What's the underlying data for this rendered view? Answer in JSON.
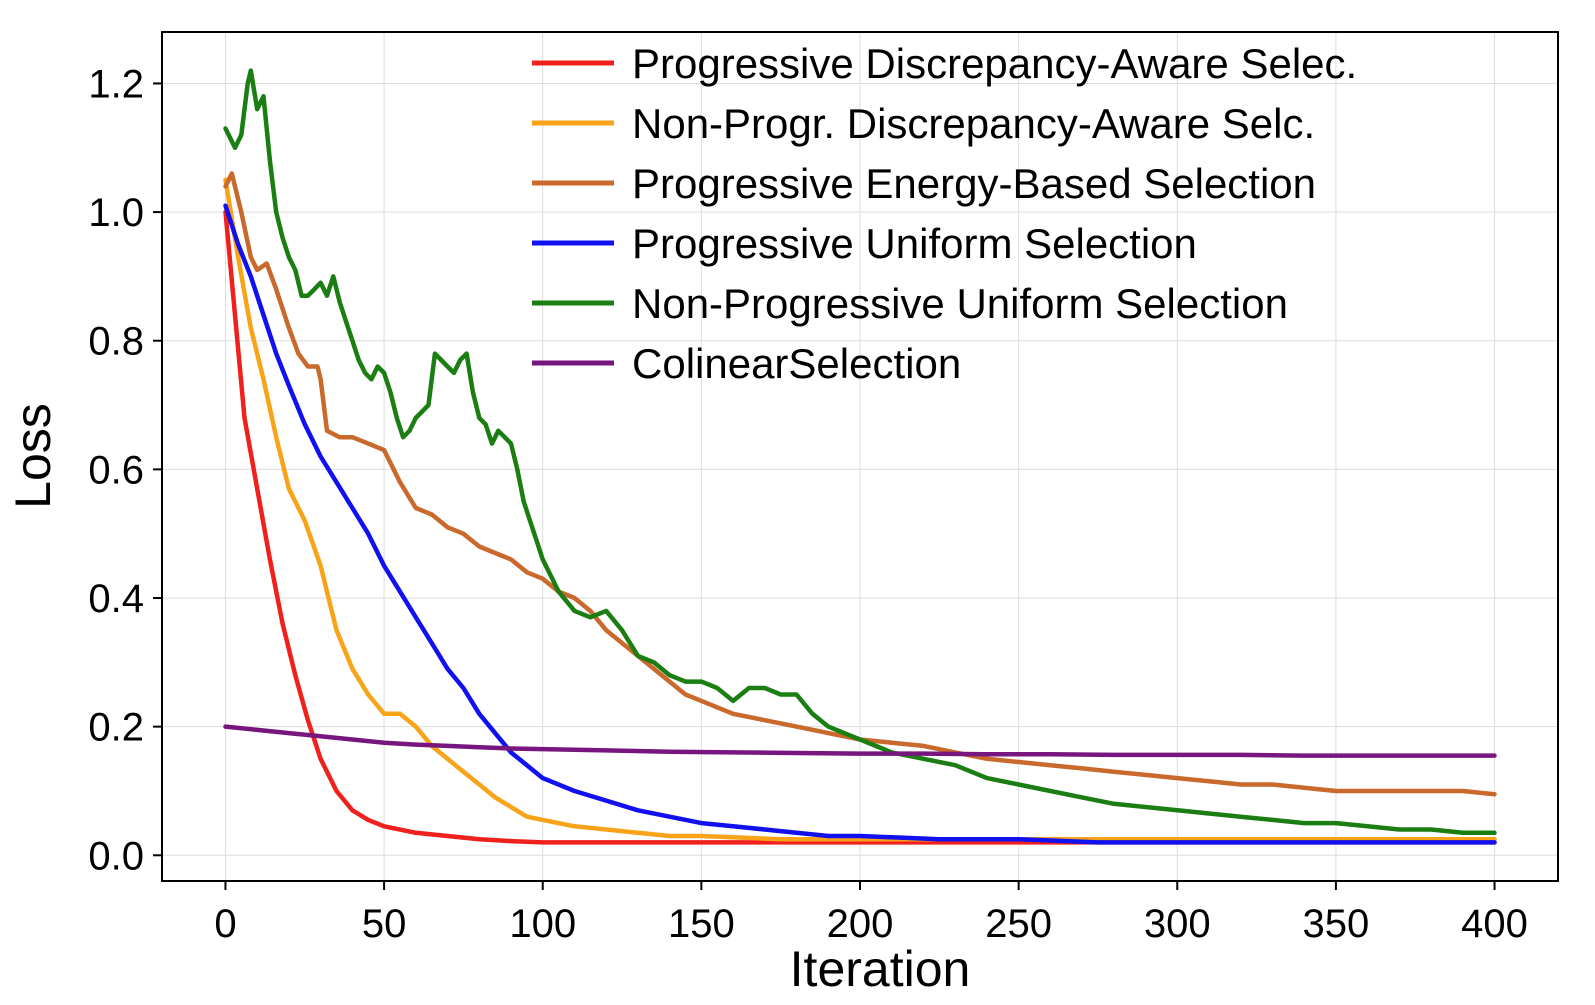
{
  "chart_data": {
    "type": "line",
    "title": "",
    "xlabel": "Iteration",
    "ylabel": "Loss",
    "xlim": [
      -20,
      420
    ],
    "ylim": [
      -0.04,
      1.28
    ],
    "xticks": [
      0,
      50,
      100,
      150,
      200,
      250,
      300,
      350,
      400
    ],
    "yticks": [
      0.0,
      0.2,
      0.4,
      0.6,
      0.8,
      1.0,
      1.2
    ],
    "xtick_labels": [
      "0",
      "50",
      "100",
      "150",
      "200",
      "250",
      "300",
      "350",
      "400"
    ],
    "ytick_labels": [
      "0.0",
      "0.2",
      "0.4",
      "0.6",
      "0.8",
      "1.0",
      "1.2"
    ],
    "grid": true,
    "legend_position": "top-right",
    "series": [
      {
        "name": "Progressive Discrepancy-Aware Selec.",
        "color": "#f0201c",
        "points": [
          [
            0,
            1.0
          ],
          [
            3,
            0.84
          ],
          [
            6,
            0.68
          ],
          [
            10,
            0.57
          ],
          [
            14,
            0.46
          ],
          [
            18,
            0.36
          ],
          [
            22,
            0.28
          ],
          [
            26,
            0.21
          ],
          [
            30,
            0.15
          ],
          [
            35,
            0.1
          ],
          [
            40,
            0.07
          ],
          [
            45,
            0.055
          ],
          [
            50,
            0.045
          ],
          [
            60,
            0.035
          ],
          [
            70,
            0.03
          ],
          [
            80,
            0.025
          ],
          [
            90,
            0.022
          ],
          [
            100,
            0.02
          ],
          [
            120,
            0.02
          ],
          [
            150,
            0.02
          ],
          [
            200,
            0.02
          ],
          [
            250,
            0.02
          ],
          [
            300,
            0.02
          ],
          [
            350,
            0.02
          ],
          [
            400,
            0.02
          ]
        ]
      },
      {
        "name": "Non-Progr. Discrepancy-Aware Selc.",
        "color": "#f8a318",
        "points": [
          [
            0,
            1.05
          ],
          [
            4,
            0.93
          ],
          [
            8,
            0.82
          ],
          [
            12,
            0.74
          ],
          [
            16,
            0.65
          ],
          [
            20,
            0.57
          ],
          [
            25,
            0.52
          ],
          [
            30,
            0.45
          ],
          [
            35,
            0.35
          ],
          [
            40,
            0.29
          ],
          [
            45,
            0.25
          ],
          [
            50,
            0.22
          ],
          [
            55,
            0.22
          ],
          [
            60,
            0.2
          ],
          [
            65,
            0.17
          ],
          [
            70,
            0.15
          ],
          [
            75,
            0.13
          ],
          [
            80,
            0.11
          ],
          [
            85,
            0.09
          ],
          [
            90,
            0.075
          ],
          [
            95,
            0.06
          ],
          [
            100,
            0.055
          ],
          [
            110,
            0.045
          ],
          [
            120,
            0.04
          ],
          [
            130,
            0.035
          ],
          [
            140,
            0.03
          ],
          [
            150,
            0.03
          ],
          [
            175,
            0.025
          ],
          [
            200,
            0.025
          ],
          [
            250,
            0.025
          ],
          [
            300,
            0.025
          ],
          [
            350,
            0.025
          ],
          [
            400,
            0.025
          ]
        ]
      },
      {
        "name": "Progressive Energy-Based Selection",
        "color": "#c9692b",
        "points": [
          [
            0,
            1.04
          ],
          [
            2,
            1.06
          ],
          [
            5,
            1.0
          ],
          [
            8,
            0.93
          ],
          [
            10,
            0.91
          ],
          [
            13,
            0.92
          ],
          [
            16,
            0.88
          ],
          [
            20,
            0.82
          ],
          [
            23,
            0.78
          ],
          [
            26,
            0.76
          ],
          [
            29,
            0.76
          ],
          [
            30,
            0.74
          ],
          [
            32,
            0.66
          ],
          [
            36,
            0.65
          ],
          [
            40,
            0.65
          ],
          [
            45,
            0.64
          ],
          [
            50,
            0.63
          ],
          [
            55,
            0.58
          ],
          [
            60,
            0.54
          ],
          [
            65,
            0.53
          ],
          [
            70,
            0.51
          ],
          [
            75,
            0.5
          ],
          [
            80,
            0.48
          ],
          [
            85,
            0.47
          ],
          [
            90,
            0.46
          ],
          [
            95,
            0.44
          ],
          [
            100,
            0.43
          ],
          [
            105,
            0.41
          ],
          [
            110,
            0.4
          ],
          [
            115,
            0.38
          ],
          [
            120,
            0.35
          ],
          [
            125,
            0.33
          ],
          [
            130,
            0.31
          ],
          [
            135,
            0.29
          ],
          [
            140,
            0.27
          ],
          [
            145,
            0.25
          ],
          [
            150,
            0.24
          ],
          [
            160,
            0.22
          ],
          [
            170,
            0.21
          ],
          [
            180,
            0.2
          ],
          [
            190,
            0.19
          ],
          [
            200,
            0.18
          ],
          [
            210,
            0.175
          ],
          [
            220,
            0.17
          ],
          [
            230,
            0.16
          ],
          [
            240,
            0.15
          ],
          [
            250,
            0.145
          ],
          [
            260,
            0.14
          ],
          [
            270,
            0.135
          ],
          [
            280,
            0.13
          ],
          [
            290,
            0.125
          ],
          [
            300,
            0.12
          ],
          [
            310,
            0.115
          ],
          [
            320,
            0.11
          ],
          [
            330,
            0.11
          ],
          [
            340,
            0.105
          ],
          [
            350,
            0.1
          ],
          [
            360,
            0.1
          ],
          [
            370,
            0.1
          ],
          [
            380,
            0.1
          ],
          [
            390,
            0.1
          ],
          [
            400,
            0.095
          ]
        ]
      },
      {
        "name": "Progressive Uniform Selection",
        "color": "#1010f0",
        "points": [
          [
            0,
            1.01
          ],
          [
            4,
            0.95
          ],
          [
            8,
            0.9
          ],
          [
            12,
            0.84
          ],
          [
            16,
            0.78
          ],
          [
            20,
            0.73
          ],
          [
            25,
            0.67
          ],
          [
            30,
            0.62
          ],
          [
            35,
            0.58
          ],
          [
            40,
            0.54
          ],
          [
            45,
            0.5
          ],
          [
            50,
            0.45
          ],
          [
            55,
            0.41
          ],
          [
            60,
            0.37
          ],
          [
            65,
            0.33
          ],
          [
            70,
            0.29
          ],
          [
            75,
            0.26
          ],
          [
            80,
            0.22
          ],
          [
            85,
            0.19
          ],
          [
            90,
            0.16
          ],
          [
            95,
            0.14
          ],
          [
            100,
            0.12
          ],
          [
            110,
            0.1
          ],
          [
            120,
            0.085
          ],
          [
            130,
            0.07
          ],
          [
            140,
            0.06
          ],
          [
            150,
            0.05
          ],
          [
            160,
            0.045
          ],
          [
            170,
            0.04
          ],
          [
            180,
            0.035
          ],
          [
            190,
            0.03
          ],
          [
            200,
            0.03
          ],
          [
            225,
            0.025
          ],
          [
            250,
            0.025
          ],
          [
            275,
            0.02
          ],
          [
            300,
            0.02
          ],
          [
            350,
            0.02
          ],
          [
            400,
            0.02
          ]
        ]
      },
      {
        "name": "Non-Progressive Uniform Selection",
        "color": "#1a7e12",
        "points": [
          [
            0,
            1.13
          ],
          [
            3,
            1.1
          ],
          [
            5,
            1.12
          ],
          [
            7,
            1.2
          ],
          [
            8,
            1.22
          ],
          [
            10,
            1.16
          ],
          [
            12,
            1.18
          ],
          [
            14,
            1.08
          ],
          [
            16,
            1.0
          ],
          [
            18,
            0.96
          ],
          [
            20,
            0.93
          ],
          [
            22,
            0.91
          ],
          [
            24,
            0.87
          ],
          [
            26,
            0.87
          ],
          [
            28,
            0.88
          ],
          [
            30,
            0.89
          ],
          [
            32,
            0.87
          ],
          [
            34,
            0.9
          ],
          [
            36,
            0.86
          ],
          [
            38,
            0.83
          ],
          [
            40,
            0.8
          ],
          [
            42,
            0.77
          ],
          [
            44,
            0.75
          ],
          [
            46,
            0.74
          ],
          [
            48,
            0.76
          ],
          [
            50,
            0.75
          ],
          [
            52,
            0.72
          ],
          [
            54,
            0.68
          ],
          [
            56,
            0.65
          ],
          [
            58,
            0.66
          ],
          [
            60,
            0.68
          ],
          [
            62,
            0.69
          ],
          [
            64,
            0.7
          ],
          [
            66,
            0.78
          ],
          [
            68,
            0.77
          ],
          [
            70,
            0.76
          ],
          [
            72,
            0.75
          ],
          [
            74,
            0.77
          ],
          [
            76,
            0.78
          ],
          [
            78,
            0.72
          ],
          [
            80,
            0.68
          ],
          [
            82,
            0.67
          ],
          [
            84,
            0.64
          ],
          [
            86,
            0.66
          ],
          [
            88,
            0.65
          ],
          [
            90,
            0.64
          ],
          [
            92,
            0.6
          ],
          [
            94,
            0.55
          ],
          [
            96,
            0.52
          ],
          [
            98,
            0.49
          ],
          [
            100,
            0.46
          ],
          [
            102,
            0.44
          ],
          [
            105,
            0.41
          ],
          [
            110,
            0.38
          ],
          [
            115,
            0.37
          ],
          [
            120,
            0.38
          ],
          [
            125,
            0.35
          ],
          [
            130,
            0.31
          ],
          [
            135,
            0.3
          ],
          [
            140,
            0.28
          ],
          [
            145,
            0.27
          ],
          [
            150,
            0.27
          ],
          [
            155,
            0.26
          ],
          [
            160,
            0.24
          ],
          [
            165,
            0.26
          ],
          [
            170,
            0.26
          ],
          [
            175,
            0.25
          ],
          [
            180,
            0.25
          ],
          [
            185,
            0.22
          ],
          [
            190,
            0.2
          ],
          [
            195,
            0.19
          ],
          [
            200,
            0.18
          ],
          [
            210,
            0.16
          ],
          [
            220,
            0.15
          ],
          [
            230,
            0.14
          ],
          [
            240,
            0.12
          ],
          [
            250,
            0.11
          ],
          [
            260,
            0.1
          ],
          [
            270,
            0.09
          ],
          [
            280,
            0.08
          ],
          [
            290,
            0.075
          ],
          [
            300,
            0.07
          ],
          [
            310,
            0.065
          ],
          [
            320,
            0.06
          ],
          [
            330,
            0.055
          ],
          [
            340,
            0.05
          ],
          [
            350,
            0.05
          ],
          [
            360,
            0.045
          ],
          [
            370,
            0.04
          ],
          [
            380,
            0.04
          ],
          [
            390,
            0.035
          ],
          [
            400,
            0.035
          ]
        ]
      },
      {
        "name": "ColinearSelection",
        "color": "#76167e",
        "points": [
          [
            0,
            0.2
          ],
          [
            10,
            0.195
          ],
          [
            20,
            0.19
          ],
          [
            30,
            0.185
          ],
          [
            40,
            0.18
          ],
          [
            50,
            0.175
          ],
          [
            60,
            0.172
          ],
          [
            70,
            0.17
          ],
          [
            80,
            0.168
          ],
          [
            90,
            0.166
          ],
          [
            100,
            0.165
          ],
          [
            120,
            0.163
          ],
          [
            140,
            0.161
          ],
          [
            160,
            0.16
          ],
          [
            180,
            0.159
          ],
          [
            200,
            0.158
          ],
          [
            220,
            0.158
          ],
          [
            240,
            0.157
          ],
          [
            260,
            0.157
          ],
          [
            280,
            0.156
          ],
          [
            300,
            0.156
          ],
          [
            320,
            0.156
          ],
          [
            340,
            0.155
          ],
          [
            360,
            0.155
          ],
          [
            380,
            0.155
          ],
          [
            400,
            0.155
          ]
        ]
      }
    ]
  }
}
